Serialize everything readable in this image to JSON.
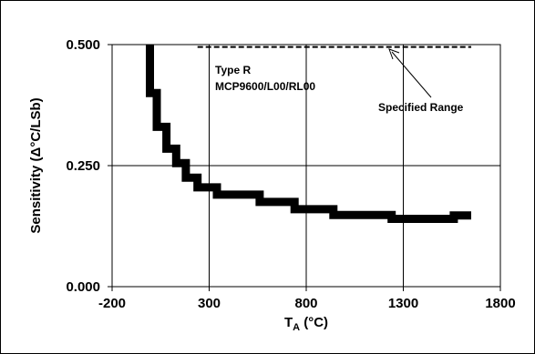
{
  "chart_data": {
    "type": "line",
    "xlabel": {
      "main": "T",
      "sub": "A",
      "unit": " (°C)"
    },
    "ylabel": "Sensitivity (Δ°C/LSb)",
    "xlim": [
      -200,
      1800
    ],
    "ylim": [
      0,
      0.5
    ],
    "x_ticks": [
      -200,
      300,
      800,
      1300,
      1800
    ],
    "x_tick_labels": [
      "-200",
      "300",
      "800",
      "1300",
      "1800"
    ],
    "y_ticks": [
      0,
      0.25,
      0.5
    ],
    "y_tick_labels": [
      "0.000",
      "0.250",
      "0.500"
    ],
    "grid": true,
    "series": [
      {
        "name": "Type R MCP9600/L00/RL00",
        "style": "step",
        "color": "#000000",
        "points": [
          [
            -5,
            0.5
          ],
          [
            -5,
            0.4
          ],
          [
            30,
            0.4
          ],
          [
            30,
            0.33
          ],
          [
            80,
            0.33
          ],
          [
            80,
            0.285
          ],
          [
            130,
            0.285
          ],
          [
            130,
            0.255
          ],
          [
            180,
            0.255
          ],
          [
            180,
            0.225
          ],
          [
            240,
            0.225
          ],
          [
            240,
            0.205
          ],
          [
            340,
            0.205
          ],
          [
            340,
            0.19
          ],
          [
            560,
            0.19
          ],
          [
            560,
            0.175
          ],
          [
            740,
            0.175
          ],
          [
            740,
            0.16
          ],
          [
            940,
            0.16
          ],
          [
            940,
            0.148
          ],
          [
            1240,
            0.148
          ],
          [
            1240,
            0.14
          ],
          [
            1560,
            0.14
          ],
          [
            1560,
            0.147
          ],
          [
            1650,
            0.147
          ]
        ]
      }
    ],
    "specified_range": {
      "x": [
        240,
        1650
      ],
      "y": 0.495
    },
    "annotations": {
      "series_label_line1": "Type R",
      "series_label_line2": "MCP9600/L00/RL00",
      "range_label": "Specified Range"
    }
  }
}
